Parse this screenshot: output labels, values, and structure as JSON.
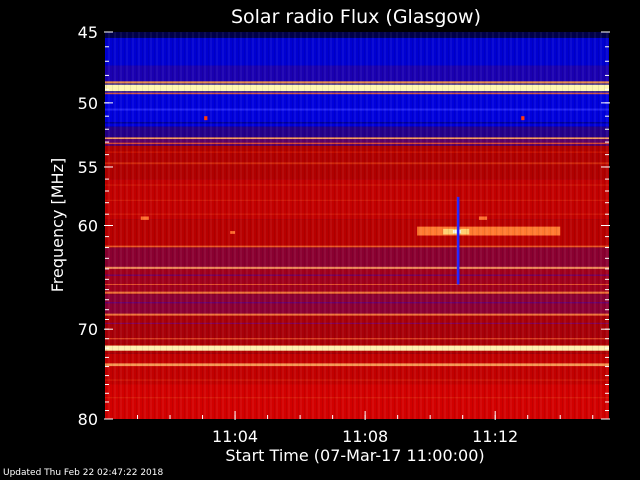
{
  "chart_data": {
    "type": "heatmap",
    "title": "Solar radio Flux (Glasgow)",
    "xlabel": "Start Time (07-Mar-17 11:00:00)",
    "ylabel": "Frequency [MHz]",
    "x_range_minutes": [
      0,
      15.5
    ],
    "xticks": [
      {
        "minute": 4,
        "label": "11:04"
      },
      {
        "minute": 8,
        "label": "11:08"
      },
      {
        "minute": 12,
        "label": "11:12"
      }
    ],
    "ylim_mhz": [
      45,
      80
    ],
    "yscale": "log",
    "yticks": [
      {
        "mhz": 45,
        "label": "45"
      },
      {
        "mhz": 50,
        "label": "50"
      },
      {
        "mhz": 55,
        "label": "55"
      },
      {
        "mhz": 60,
        "label": "60"
      },
      {
        "mhz": 70,
        "label": "70"
      },
      {
        "mhz": 80,
        "label": "80"
      }
    ],
    "colormap": [
      "#00001a",
      "#0000c8",
      "#c80000",
      "#ff8a1e",
      "#fff6b0"
    ],
    "background_bands": [
      {
        "f0": 45.0,
        "f1": 45.4,
        "color": "#00004a"
      },
      {
        "f0": 45.4,
        "f1": 47.3,
        "color": "#0000d2"
      },
      {
        "f0": 47.3,
        "f1": 48.6,
        "color": "#1a00b0"
      },
      {
        "f0": 48.6,
        "f1": 49.2,
        "color": "#3a2a8a"
      },
      {
        "f0": 49.2,
        "f1": 51.8,
        "color": "#0000dc"
      },
      {
        "f0": 51.8,
        "f1": 52.6,
        "color": "#24008a"
      },
      {
        "f0": 52.6,
        "f1": 53.3,
        "color": "#5a0068"
      },
      {
        "f0": 53.3,
        "f1": 56.0,
        "color": "#b00000"
      },
      {
        "f0": 56.0,
        "f1": 59.5,
        "color": "#c20000"
      },
      {
        "f0": 59.5,
        "f1": 62.0,
        "color": "#b80000"
      },
      {
        "f0": 62.0,
        "f1": 64.0,
        "color": "#8a0030"
      },
      {
        "f0": 64.0,
        "f1": 66.5,
        "color": "#a0001c"
      },
      {
        "f0": 66.5,
        "f1": 68.5,
        "color": "#8c0034"
      },
      {
        "f0": 68.5,
        "f1": 71.5,
        "color": "#a80008"
      },
      {
        "f0": 71.5,
        "f1": 72.6,
        "color": "#b00000"
      },
      {
        "f0": 72.6,
        "f1": 76.0,
        "color": "#c20000"
      },
      {
        "f0": 76.0,
        "f1": 80.0,
        "color": "#d20000"
      }
    ],
    "lines": [
      {
        "f": 48.9,
        "w": 0.45,
        "color": "#fff6b0",
        "opacity": 1.0
      },
      {
        "f": 48.5,
        "w": 0.15,
        "color": "#ff9a40",
        "opacity": 0.9
      },
      {
        "f": 49.3,
        "w": 0.12,
        "color": "#ff6a20",
        "opacity": 0.8
      },
      {
        "f": 50.5,
        "w": 0.15,
        "color": "#3030ff",
        "opacity": 0.7
      },
      {
        "f": 51.5,
        "w": 0.12,
        "color": "#00007a",
        "opacity": 0.7
      },
      {
        "f": 52.7,
        "w": 0.12,
        "color": "#ffb060",
        "opacity": 0.9
      },
      {
        "f": 53.1,
        "w": 0.1,
        "color": "#ff6020",
        "opacity": 0.8
      },
      {
        "f": 53.8,
        "w": 0.1,
        "color": "#e02000",
        "opacity": 0.6
      },
      {
        "f": 54.7,
        "w": 0.15,
        "color": "#e84010",
        "opacity": 0.6
      },
      {
        "f": 56.5,
        "w": 0.1,
        "color": "#e03010",
        "opacity": 0.5
      },
      {
        "f": 57.8,
        "w": 0.1,
        "color": "#e03010",
        "opacity": 0.5
      },
      {
        "f": 59.0,
        "w": 0.12,
        "color": "#e02810",
        "opacity": 0.5
      },
      {
        "f": 61.9,
        "w": 0.15,
        "color": "#ff7a30",
        "opacity": 0.7
      },
      {
        "f": 63.9,
        "w": 0.2,
        "color": "#ffa060",
        "opacity": 0.85
      },
      {
        "f": 64.6,
        "w": 0.12,
        "color": "#4a00a0",
        "opacity": 0.6
      },
      {
        "f": 65.5,
        "w": 0.1,
        "color": "#ff7030",
        "opacity": 0.7
      },
      {
        "f": 66.3,
        "w": 0.2,
        "color": "#ff9040",
        "opacity": 0.8
      },
      {
        "f": 67.3,
        "w": 0.12,
        "color": "#4a00a0",
        "opacity": 0.6
      },
      {
        "f": 68.5,
        "w": 0.2,
        "color": "#ff8a40",
        "opacity": 0.85
      },
      {
        "f": 69.4,
        "w": 0.12,
        "color": "#6a0090",
        "opacity": 0.6
      },
      {
        "f": 71.0,
        "w": 0.12,
        "color": "#ff6a30",
        "opacity": 0.7
      },
      {
        "f": 72.0,
        "w": 0.55,
        "color": "#fff0b0",
        "opacity": 1.0
      },
      {
        "f": 73.8,
        "w": 0.3,
        "color": "#ffb060",
        "opacity": 0.85
      },
      {
        "f": 75.5,
        "w": 0.15,
        "color": "#e03010",
        "opacity": 0.5
      },
      {
        "f": 77.5,
        "w": 0.15,
        "color": "#e03010",
        "opacity": 0.5
      }
    ],
    "events": [
      {
        "t0": 9.6,
        "t1": 14.0,
        "f0": 60.1,
        "f1": 60.9,
        "color": "#ff7a30"
      },
      {
        "t0": 10.4,
        "t1": 11.2,
        "f0": 60.3,
        "f1": 60.8,
        "color": "#ffd070"
      },
      {
        "t0": 10.7,
        "t1": 10.95,
        "f0": 60.4,
        "f1": 60.7,
        "color": "#fffbe0"
      },
      {
        "t0": 10.82,
        "t1": 10.9,
        "f0": 57.5,
        "f1": 65.5,
        "color": "#2020ff"
      },
      {
        "t0": 1.1,
        "t1": 1.35,
        "f0": 59.2,
        "f1": 59.5,
        "color": "#ff7030"
      },
      {
        "t0": 3.85,
        "t1": 4.0,
        "f0": 60.5,
        "f1": 60.75,
        "color": "#ff7030"
      },
      {
        "t0": 11.5,
        "t1": 11.75,
        "f0": 59.2,
        "f1": 59.5,
        "color": "#ff7030"
      },
      {
        "t0": 3.05,
        "t1": 3.15,
        "f0": 51.0,
        "f1": 51.3,
        "color": "#ff3000"
      },
      {
        "t0": 12.8,
        "t1": 12.9,
        "f0": 51.0,
        "f1": 51.3,
        "color": "#ff3000"
      }
    ]
  },
  "footer": {
    "updated_label": "Updated Thu Feb 22 02:47:22 2018"
  }
}
